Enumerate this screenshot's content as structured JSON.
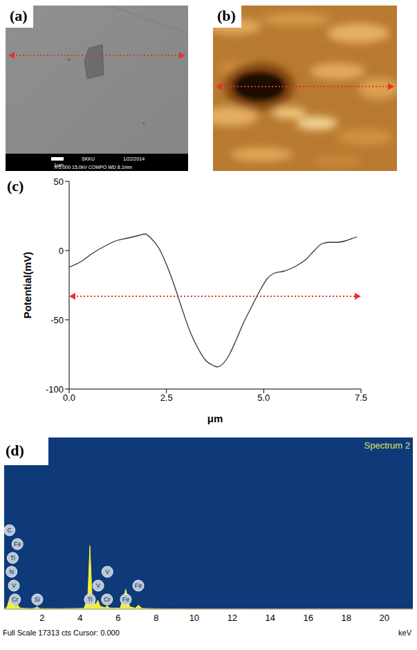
{
  "panels": [
    {
      "label": "(a)",
      "scale_bar": "1μm",
      "info": [
        "SKKU",
        "1/22/2014",
        "X 5,000",
        "15.0kV",
        "COMPO",
        "WD 8.1mm"
      ]
    },
    {
      "label": "(b)"
    }
  ],
  "chart_data": [
    {
      "label": "(c)",
      "type": "line",
      "x": [
        0,
        0.3,
        0.6,
        0.9,
        1.2,
        1.5,
        1.8,
        1.95,
        2.1,
        2.3,
        2.5,
        2.7,
        2.9,
        3.1,
        3.3,
        3.5,
        3.7,
        3.8,
        3.9,
        4.1,
        4.3,
        4.5,
        4.7,
        4.9,
        5.1,
        5.3,
        5.5,
        5.7,
        5.9,
        6.1,
        6.3,
        6.5,
        6.7,
        6.9,
        7.1,
        7.3,
        7.4
      ],
      "values": [
        -12,
        -8,
        -2,
        3,
        7,
        9,
        11,
        12,
        9,
        2,
        -10,
        -25,
        -42,
        -58,
        -70,
        -79,
        -83,
        -84,
        -83,
        -76,
        -64,
        -51,
        -40,
        -29,
        -20,
        -16,
        -15,
        -13,
        -10,
        -6,
        0,
        5,
        6,
        6,
        7,
        9,
        10
      ],
      "color": "#333333",
      "xlim": [
        0,
        7.5
      ],
      "xticks": [
        {
          "value": 0,
          "label": "0.0"
        },
        {
          "value": 2.5,
          "label": "2.5"
        },
        {
          "value": 5,
          "label": "5.0"
        },
        {
          "value": 7.5,
          "label": "7.5"
        }
      ],
      "ylim": [
        -100,
        50
      ],
      "yticks": [
        -100,
        -50,
        0,
        50
      ],
      "x_label": "μm",
      "y_label": "Potential(mV)",
      "arrow_y": -33
    },
    {
      "label": "(d)",
      "type": "area",
      "title": "Spectrum 2",
      "x": [
        0,
        0.15,
        0.28,
        0.35,
        0.39,
        0.45,
        0.51,
        0.57,
        0.65,
        0.7,
        0.8,
        1.0,
        1.5,
        1.74,
        1.9,
        3.0,
        4.2,
        4.4,
        4.51,
        4.62,
        4.8,
        4.93,
        5.05,
        5.3,
        5.41,
        5.55,
        6.1,
        6.4,
        6.6,
        6.9,
        7.06,
        7.25,
        8,
        10,
        15,
        21.5
      ],
      "values": [
        0,
        200,
        1000,
        500,
        700,
        1100,
        600,
        400,
        300,
        500,
        150,
        80,
        60,
        200,
        60,
        50,
        80,
        1200,
        6400,
        1500,
        400,
        900,
        300,
        150,
        350,
        120,
        100,
        2000,
        250,
        100,
        400,
        80,
        40,
        20,
        10,
        10
      ],
      "color": "#f2ee3a",
      "xlim": [
        0,
        21.5
      ],
      "xticks": [
        2,
        4,
        6,
        8,
        10,
        12,
        14,
        16,
        18,
        20
      ],
      "ylim": [
        0,
        17313
      ],
      "tick_labels": "x",
      "x_label": "keV",
      "footer": "Full Scale 17313 cts Cursor: 0.000",
      "annotations": [
        {
          "label": "Cr",
          "x": 0.57
        },
        {
          "label": "V",
          "x": 0.51
        },
        {
          "label": "N",
          "x": 0.39
        },
        {
          "label": "Ti",
          "x": 0.45
        },
        {
          "label": "Fe",
          "x": 0.7
        },
        {
          "label": "C",
          "x": 0.28
        },
        {
          "label": "Si",
          "x": 1.74
        },
        {
          "label": "Ti",
          "x": 4.51
        },
        {
          "label": "V",
          "x": 4.95
        },
        {
          "label": "Cr",
          "x": 5.41
        },
        {
          "label": "V",
          "x": 5.43
        },
        {
          "label": "Fe",
          "x": 6.4
        },
        {
          "label": "Fe",
          "x": 7.06
        }
      ]
    }
  ]
}
